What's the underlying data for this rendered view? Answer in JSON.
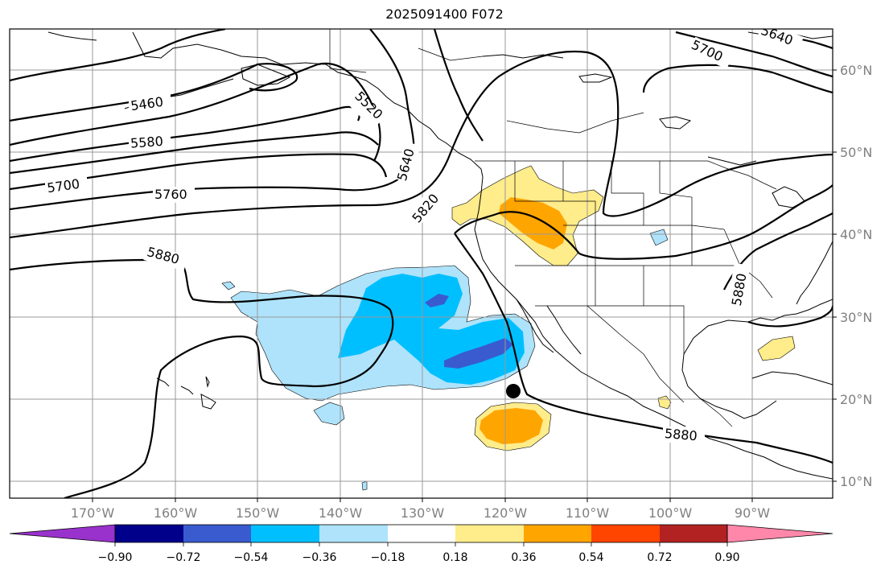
{
  "title": "2025091400 F072",
  "map": {
    "lon_labels": [
      "170°W",
      "160°W",
      "150°W",
      "140°W",
      "130°W",
      "120°W",
      "110°W",
      "100°W",
      "90°W"
    ],
    "lat_labels": [
      "60°N",
      "50°N",
      "40°N",
      "30°N",
      "20°N",
      "10°N"
    ],
    "contour_labels": [
      "5460",
      "5520",
      "5580",
      "5640",
      "5640",
      "5700",
      "5700",
      "5760",
      "5820",
      "5880",
      "5880",
      "5880"
    ],
    "marker": {
      "name": "storm-center-dot",
      "lon": -119,
      "lat": 21
    }
  },
  "colorbar": {
    "tick_labels": [
      "−0.90",
      "−0.72",
      "−0.54",
      "−0.36",
      "−0.18",
      "0.18",
      "0.36",
      "0.54",
      "0.72",
      "0.90"
    ],
    "colors": [
      "#9932cc",
      "#00008b",
      "#3a5bcf",
      "#00bfff",
      "#aee3fb",
      "#ffffff",
      "#ffec8b",
      "#ffa500",
      "#ff4500",
      "#b22222",
      "#ff88aa"
    ]
  }
}
